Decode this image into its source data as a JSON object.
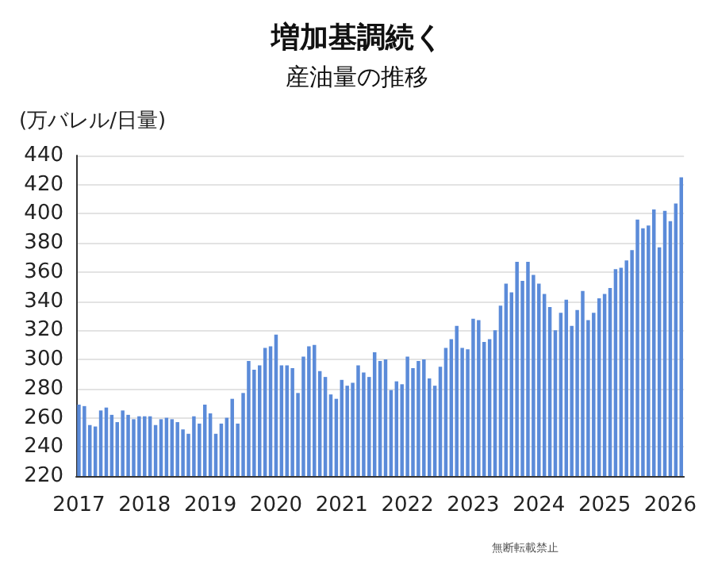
{
  "chart_data": {
    "type": "bar",
    "title": "増加基調続く",
    "subtitle": "産油量の推移",
    "ylabel": "(万バレル/日量)",
    "categories": [
      "2017",
      null,
      null,
      null,
      null,
      null,
      null,
      null,
      null,
      null,
      null,
      null,
      "2018",
      null,
      null,
      null,
      null,
      null,
      null,
      null,
      null,
      null,
      null,
      null,
      "2019",
      null,
      null,
      null,
      null,
      null,
      null,
      null,
      null,
      null,
      null,
      null,
      "2020",
      null,
      null,
      null,
      null,
      null,
      null,
      null,
      null,
      null,
      null,
      null,
      "2021",
      null,
      null,
      null,
      null,
      null,
      null,
      null,
      null,
      null,
      null,
      null,
      "2022",
      null,
      null,
      null,
      null,
      null,
      null,
      null,
      null,
      null,
      null,
      null,
      "2023",
      null,
      null,
      null,
      null,
      null,
      null,
      null,
      null,
      null,
      null,
      null,
      "2024",
      null,
      null,
      null,
      null,
      null,
      null,
      null,
      null,
      null,
      null,
      null,
      "2025",
      null,
      null,
      null,
      null,
      null,
      null,
      null,
      null,
      null,
      null,
      null,
      "2026",
      null,
      null
    ],
    "values": [
      269,
      268,
      255,
      254,
      265,
      267,
      262,
      257,
      265,
      262,
      259,
      261,
      261,
      261,
      255,
      259,
      260,
      259,
      257,
      252,
      249,
      261,
      256,
      269,
      263,
      249,
      256,
      260,
      273,
      256,
      277,
      299,
      293,
      296,
      308,
      309,
      317,
      296,
      296,
      294,
      277,
      302,
      309,
      310,
      292,
      288,
      276,
      273,
      286,
      282,
      284,
      296,
      291,
      288,
      305,
      299,
      300,
      279,
      285,
      283,
      302,
      294,
      299,
      300,
      287,
      282,
      295,
      308,
      314,
      323,
      308,
      307,
      328,
      327,
      312,
      314,
      320,
      337,
      352,
      346,
      367,
      354,
      367,
      358,
      352,
      345,
      336,
      320,
      332,
      341,
      323,
      334,
      347,
      327,
      332,
      342,
      345,
      349,
      362,
      363,
      368,
      375,
      396,
      390,
      392,
      403,
      377,
      402,
      395,
      407,
      425
    ],
    "color": "#5b8bd9",
    "ylim": [
      220,
      440
    ],
    "yticks": [
      220,
      240,
      260,
      280,
      300,
      320,
      340,
      360,
      380,
      400,
      420,
      440
    ],
    "grid": "y",
    "annotations": [
      "無断転載禁止"
    ]
  }
}
